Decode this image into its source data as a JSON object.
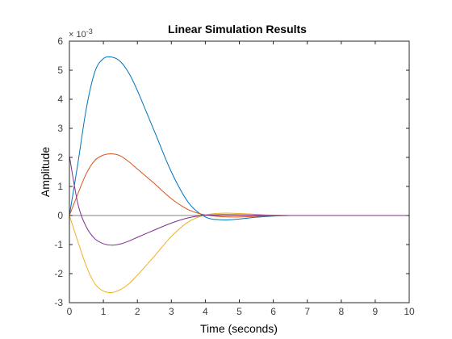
{
  "chart_data": {
    "type": "line",
    "title": "Linear Simulation Results",
    "xlabel": "Time (seconds)",
    "ylabel": "Amplitude",
    "y_exponent_base": "× 10",
    "y_exponent_power": "-3",
    "xlim": [
      0,
      10
    ],
    "ylim": [
      -3,
      6
    ],
    "xticks": [
      "0",
      "1",
      "2",
      "3",
      "4",
      "5",
      "6",
      "7",
      "8",
      "9",
      "10"
    ],
    "yticks": [
      "-3",
      "-2",
      "-1",
      "0",
      "1",
      "2",
      "3",
      "4",
      "5",
      "6"
    ],
    "grid": false,
    "x": [
      0,
      0.25,
      0.5,
      0.75,
      1.0,
      1.25,
      1.5,
      1.75,
      2.0,
      2.5,
      3.0,
      3.5,
      4.0,
      4.5,
      5.0,
      5.5,
      6.0,
      6.5,
      7.0,
      8.0,
      9.0,
      10.0
    ],
    "series": [
      {
        "color": "#0072BD",
        "values": [
          0,
          1.8,
          3.7,
          4.95,
          5.4,
          5.45,
          5.3,
          4.9,
          4.3,
          2.9,
          1.5,
          0.45,
          -0.05,
          -0.15,
          -0.12,
          -0.06,
          -0.02,
          0,
          0,
          0,
          0,
          0
        ]
      },
      {
        "color": "#D95319",
        "values": [
          0,
          0.75,
          1.45,
          1.9,
          2.08,
          2.12,
          2.05,
          1.85,
          1.6,
          1.1,
          0.58,
          0.2,
          0.02,
          -0.04,
          -0.05,
          -0.03,
          -0.01,
          0,
          0,
          0,
          0,
          0
        ]
      },
      {
        "color": "#EDB120",
        "values": [
          0,
          -0.9,
          -1.75,
          -2.35,
          -2.6,
          -2.65,
          -2.55,
          -2.35,
          -2.05,
          -1.4,
          -0.72,
          -0.22,
          0.02,
          0.08,
          0.07,
          0.04,
          0.01,
          0,
          0,
          0,
          0,
          0
        ]
      },
      {
        "color": "#7E2F8E",
        "values": [
          2.05,
          0.4,
          -0.4,
          -0.8,
          -0.97,
          -1.02,
          -0.98,
          -0.88,
          -0.75,
          -0.5,
          -0.26,
          -0.08,
          0.01,
          0.03,
          0.025,
          0.015,
          0.005,
          0,
          0,
          0,
          0,
          0
        ]
      }
    ],
    "colors": {
      "axes": "#262626",
      "zero_line": "#808080"
    }
  }
}
